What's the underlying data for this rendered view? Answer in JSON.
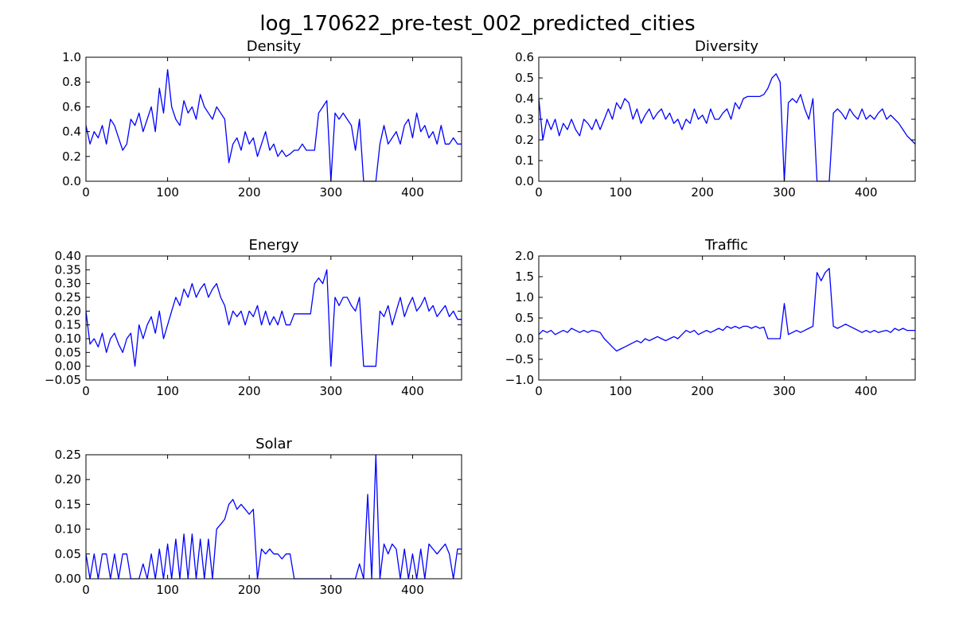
{
  "figure": {
    "title": "log_170622_pre-test_002_predicted_cities"
  },
  "chart_data": [
    {
      "type": "line",
      "title": "Density",
      "xlim": [
        0,
        460
      ],
      "ylim": [
        0.0,
        1.0
      ],
      "xticks": [
        0,
        100,
        200,
        300,
        400
      ],
      "xtick_labels": [
        "0",
        "100",
        "200",
        "300",
        "400"
      ],
      "yticks": [
        0.0,
        0.2,
        0.4,
        0.6,
        0.8,
        1.0
      ],
      "ytick_labels": [
        "0.0",
        "0.2",
        "0.4",
        "0.6",
        "0.8",
        "1.0"
      ],
      "grid": false,
      "color": "#0000ff",
      "x": [
        0,
        5,
        10,
        15,
        20,
        25,
        30,
        35,
        40,
        45,
        50,
        55,
        60,
        65,
        70,
        75,
        80,
        85,
        90,
        95,
        100,
        105,
        110,
        115,
        120,
        125,
        130,
        135,
        140,
        145,
        150,
        155,
        160,
        165,
        170,
        175,
        180,
        185,
        190,
        195,
        200,
        205,
        210,
        215,
        220,
        225,
        230,
        235,
        240,
        245,
        250,
        255,
        260,
        265,
        270,
        275,
        280,
        285,
        290,
        295,
        300,
        305,
        310,
        315,
        320,
        325,
        330,
        335,
        340,
        345,
        350,
        355,
        360,
        365,
        370,
        375,
        380,
        385,
        390,
        395,
        400,
        405,
        410,
        415,
        420,
        425,
        430,
        435,
        440,
        445,
        450,
        455,
        460
      ],
      "y": [
        0.45,
        0.3,
        0.4,
        0.35,
        0.45,
        0.3,
        0.5,
        0.45,
        0.35,
        0.25,
        0.3,
        0.5,
        0.45,
        0.55,
        0.4,
        0.5,
        0.6,
        0.4,
        0.75,
        0.55,
        0.9,
        0.6,
        0.5,
        0.45,
        0.65,
        0.55,
        0.6,
        0.5,
        0.7,
        0.6,
        0.55,
        0.5,
        0.6,
        0.55,
        0.5,
        0.15,
        0.3,
        0.35,
        0.25,
        0.4,
        0.3,
        0.35,
        0.2,
        0.3,
        0.4,
        0.25,
        0.3,
        0.2,
        0.25,
        0.2,
        0.22,
        0.25,
        0.25,
        0.3,
        0.25,
        0.25,
        0.25,
        0.55,
        0.6,
        0.65,
        0.0,
        0.55,
        0.5,
        0.55,
        0.5,
        0.45,
        0.25,
        0.5,
        0.0,
        0.0,
        0.0,
        0.0,
        0.3,
        0.45,
        0.3,
        0.35,
        0.4,
        0.3,
        0.45,
        0.5,
        0.35,
        0.55,
        0.4,
        0.45,
        0.35,
        0.4,
        0.3,
        0.45,
        0.3,
        0.3,
        0.35,
        0.3,
        0.3
      ]
    },
    {
      "type": "line",
      "title": "Diversity",
      "xlim": [
        0,
        460
      ],
      "ylim": [
        0.0,
        0.6
      ],
      "xticks": [
        0,
        100,
        200,
        300,
        400
      ],
      "xtick_labels": [
        "0",
        "100",
        "200",
        "300",
        "400"
      ],
      "yticks": [
        0.0,
        0.1,
        0.2,
        0.3,
        0.4,
        0.5,
        0.6
      ],
      "ytick_labels": [
        "0.0",
        "0.1",
        "0.2",
        "0.3",
        "0.4",
        "0.5",
        "0.6"
      ],
      "grid": false,
      "color": "#0000ff",
      "x": [
        0,
        5,
        10,
        15,
        20,
        25,
        30,
        35,
        40,
        45,
        50,
        55,
        60,
        65,
        70,
        75,
        80,
        85,
        90,
        95,
        100,
        105,
        110,
        115,
        120,
        125,
        130,
        135,
        140,
        145,
        150,
        155,
        160,
        165,
        170,
        175,
        180,
        185,
        190,
        195,
        200,
        205,
        210,
        215,
        220,
        225,
        230,
        235,
        240,
        245,
        250,
        255,
        260,
        265,
        270,
        275,
        280,
        285,
        290,
        295,
        300,
        305,
        310,
        315,
        320,
        325,
        330,
        335,
        340,
        345,
        350,
        355,
        360,
        365,
        370,
        375,
        380,
        385,
        390,
        395,
        400,
        405,
        410,
        415,
        420,
        425,
        430,
        435,
        440,
        445,
        450,
        455,
        460
      ],
      "y": [
        0.4,
        0.2,
        0.3,
        0.25,
        0.3,
        0.22,
        0.28,
        0.25,
        0.3,
        0.25,
        0.22,
        0.3,
        0.28,
        0.25,
        0.3,
        0.25,
        0.3,
        0.35,
        0.3,
        0.38,
        0.35,
        0.4,
        0.38,
        0.3,
        0.35,
        0.28,
        0.32,
        0.35,
        0.3,
        0.33,
        0.35,
        0.3,
        0.33,
        0.28,
        0.3,
        0.25,
        0.3,
        0.28,
        0.35,
        0.3,
        0.32,
        0.28,
        0.35,
        0.3,
        0.3,
        0.33,
        0.35,
        0.3,
        0.38,
        0.35,
        0.4,
        0.41,
        0.41,
        0.41,
        0.41,
        0.42,
        0.45,
        0.5,
        0.52,
        0.48,
        0.0,
        0.38,
        0.4,
        0.38,
        0.42,
        0.35,
        0.3,
        0.4,
        0.0,
        0.0,
        0.0,
        0.0,
        0.33,
        0.35,
        0.33,
        0.3,
        0.35,
        0.32,
        0.3,
        0.35,
        0.3,
        0.32,
        0.3,
        0.33,
        0.35,
        0.3,
        0.32,
        0.3,
        0.28,
        0.25,
        0.22,
        0.2,
        0.18
      ]
    },
    {
      "type": "line",
      "title": "Energy",
      "xlim": [
        0,
        460
      ],
      "ylim": [
        -0.05,
        0.4
      ],
      "xticks": [
        0,
        100,
        200,
        300,
        400
      ],
      "xtick_labels": [
        "0",
        "100",
        "200",
        "300",
        "400"
      ],
      "yticks": [
        -0.05,
        0.0,
        0.05,
        0.1,
        0.15,
        0.2,
        0.25,
        0.3,
        0.35,
        0.4
      ],
      "ytick_labels": [
        "−0.05",
        "0.00",
        "0.05",
        "0.10",
        "0.15",
        "0.20",
        "0.25",
        "0.30",
        "0.35",
        "0.40"
      ],
      "grid": false,
      "color": "#0000ff",
      "x": [
        0,
        5,
        10,
        15,
        20,
        25,
        30,
        35,
        40,
        45,
        50,
        55,
        60,
        65,
        70,
        75,
        80,
        85,
        90,
        95,
        100,
        105,
        110,
        115,
        120,
        125,
        130,
        135,
        140,
        145,
        150,
        155,
        160,
        165,
        170,
        175,
        180,
        185,
        190,
        195,
        200,
        205,
        210,
        215,
        220,
        225,
        230,
        235,
        240,
        245,
        250,
        255,
        260,
        265,
        270,
        275,
        280,
        285,
        290,
        295,
        300,
        305,
        310,
        315,
        320,
        325,
        330,
        335,
        340,
        345,
        350,
        355,
        360,
        365,
        370,
        375,
        380,
        385,
        390,
        395,
        400,
        405,
        410,
        415,
        420,
        425,
        430,
        435,
        440,
        445,
        450,
        455,
        460
      ],
      "y": [
        0.2,
        0.08,
        0.1,
        0.07,
        0.12,
        0.05,
        0.1,
        0.12,
        0.08,
        0.05,
        0.1,
        0.12,
        0.0,
        0.15,
        0.1,
        0.15,
        0.18,
        0.12,
        0.2,
        0.1,
        0.15,
        0.2,
        0.25,
        0.22,
        0.28,
        0.25,
        0.3,
        0.25,
        0.28,
        0.3,
        0.25,
        0.28,
        0.3,
        0.25,
        0.22,
        0.15,
        0.2,
        0.18,
        0.2,
        0.15,
        0.2,
        0.18,
        0.22,
        0.15,
        0.2,
        0.15,
        0.18,
        0.15,
        0.2,
        0.15,
        0.15,
        0.19,
        0.19,
        0.19,
        0.19,
        0.19,
        0.3,
        0.32,
        0.3,
        0.35,
        0.0,
        0.25,
        0.22,
        0.25,
        0.25,
        0.22,
        0.2,
        0.25,
        0.0,
        0.0,
        0.0,
        0.0,
        0.2,
        0.18,
        0.22,
        0.15,
        0.2,
        0.25,
        0.18,
        0.22,
        0.25,
        0.2,
        0.22,
        0.25,
        0.2,
        0.22,
        0.18,
        0.2,
        0.22,
        0.18,
        0.2,
        0.17,
        0.17
      ]
    },
    {
      "type": "line",
      "title": "Traffic",
      "xlim": [
        0,
        460
      ],
      "ylim": [
        -1.0,
        2.0
      ],
      "xticks": [
        0,
        100,
        200,
        300,
        400
      ],
      "xtick_labels": [
        "0",
        "100",
        "200",
        "300",
        "400"
      ],
      "yticks": [
        -1.0,
        -0.5,
        0.0,
        0.5,
        1.0,
        1.5,
        2.0
      ],
      "ytick_labels": [
        "−1.0",
        "−0.5",
        "0.0",
        "0.5",
        "1.0",
        "1.5",
        "2.0"
      ],
      "grid": false,
      "color": "#0000ff",
      "x": [
        0,
        5,
        10,
        15,
        20,
        25,
        30,
        35,
        40,
        45,
        50,
        55,
        60,
        65,
        70,
        75,
        80,
        85,
        90,
        95,
        100,
        105,
        110,
        115,
        120,
        125,
        130,
        135,
        140,
        145,
        150,
        155,
        160,
        165,
        170,
        175,
        180,
        185,
        190,
        195,
        200,
        205,
        210,
        215,
        220,
        225,
        230,
        235,
        240,
        245,
        250,
        255,
        260,
        265,
        270,
        275,
        280,
        285,
        290,
        295,
        300,
        305,
        310,
        315,
        320,
        325,
        330,
        335,
        340,
        345,
        350,
        355,
        360,
        365,
        370,
        375,
        380,
        385,
        390,
        395,
        400,
        405,
        410,
        415,
        420,
        425,
        430,
        435,
        440,
        445,
        450,
        455,
        460
      ],
      "y": [
        0.1,
        0.2,
        0.15,
        0.2,
        0.1,
        0.15,
        0.2,
        0.15,
        0.25,
        0.2,
        0.15,
        0.2,
        0.15,
        0.2,
        0.18,
        0.15,
        0.0,
        -0.1,
        -0.2,
        -0.3,
        -0.25,
        -0.2,
        -0.15,
        -0.1,
        -0.05,
        -0.1,
        0.0,
        -0.05,
        0.0,
        0.05,
        0.0,
        -0.05,
        0.0,
        0.05,
        0.0,
        0.1,
        0.2,
        0.15,
        0.2,
        0.1,
        0.15,
        0.2,
        0.15,
        0.2,
        0.25,
        0.2,
        0.3,
        0.25,
        0.3,
        0.25,
        0.3,
        0.3,
        0.25,
        0.3,
        0.25,
        0.28,
        0.0,
        0.0,
        0.0,
        0.0,
        0.85,
        0.1,
        0.15,
        0.2,
        0.15,
        0.2,
        0.25,
        0.3,
        1.6,
        1.4,
        1.6,
        1.7,
        0.3,
        0.25,
        0.3,
        0.35,
        0.3,
        0.25,
        0.2,
        0.15,
        0.2,
        0.15,
        0.2,
        0.15,
        0.18,
        0.2,
        0.15,
        0.25,
        0.2,
        0.25,
        0.2,
        0.2,
        0.2
      ]
    },
    {
      "type": "line",
      "title": "Solar",
      "xlim": [
        0,
        460
      ],
      "ylim": [
        0.0,
        0.25
      ],
      "xticks": [
        0,
        100,
        200,
        300,
        400
      ],
      "xtick_labels": [
        "0",
        "100",
        "200",
        "300",
        "400"
      ],
      "yticks": [
        0.0,
        0.05,
        0.1,
        0.15,
        0.2,
        0.25
      ],
      "ytick_labels": [
        "0.00",
        "0.05",
        "0.10",
        "0.15",
        "0.20",
        "0.25"
      ],
      "grid": false,
      "color": "#0000ff",
      "x": [
        0,
        5,
        10,
        15,
        20,
        25,
        30,
        35,
        40,
        45,
        50,
        55,
        60,
        65,
        70,
        75,
        80,
        85,
        90,
        95,
        100,
        105,
        110,
        115,
        120,
        125,
        130,
        135,
        140,
        145,
        150,
        155,
        160,
        165,
        170,
        175,
        180,
        185,
        190,
        195,
        200,
        205,
        210,
        215,
        220,
        225,
        230,
        235,
        240,
        245,
        250,
        255,
        260,
        265,
        270,
        275,
        280,
        285,
        290,
        295,
        300,
        305,
        310,
        315,
        320,
        325,
        330,
        335,
        340,
        345,
        350,
        355,
        360,
        365,
        370,
        375,
        380,
        385,
        390,
        395,
        400,
        405,
        410,
        415,
        420,
        425,
        430,
        435,
        440,
        445,
        450,
        455,
        460
      ],
      "y": [
        0.05,
        0.0,
        0.05,
        0.0,
        0.05,
        0.05,
        0.0,
        0.05,
        0.0,
        0.05,
        0.05,
        0.0,
        0.0,
        0.0,
        0.03,
        0.0,
        0.05,
        0.0,
        0.06,
        0.0,
        0.07,
        0.0,
        0.08,
        0.0,
        0.09,
        0.0,
        0.09,
        0.0,
        0.08,
        0.0,
        0.08,
        0.0,
        0.1,
        0.11,
        0.12,
        0.15,
        0.16,
        0.14,
        0.15,
        0.14,
        0.13,
        0.14,
        0.0,
        0.06,
        0.05,
        0.06,
        0.05,
        0.05,
        0.04,
        0.05,
        0.05,
        0.0,
        0.0,
        0.0,
        0.0,
        0.0,
        0.0,
        0.0,
        0.0,
        0.0,
        0.0,
        0.0,
        0.0,
        0.0,
        0.0,
        0.0,
        0.0,
        0.03,
        0.0,
        0.17,
        0.0,
        0.25,
        0.0,
        0.07,
        0.05,
        0.07,
        0.06,
        0.0,
        0.06,
        0.0,
        0.05,
        0.0,
        0.06,
        0.0,
        0.07,
        0.06,
        0.05,
        0.06,
        0.07,
        0.05,
        0.0,
        0.06,
        0.06
      ]
    }
  ]
}
